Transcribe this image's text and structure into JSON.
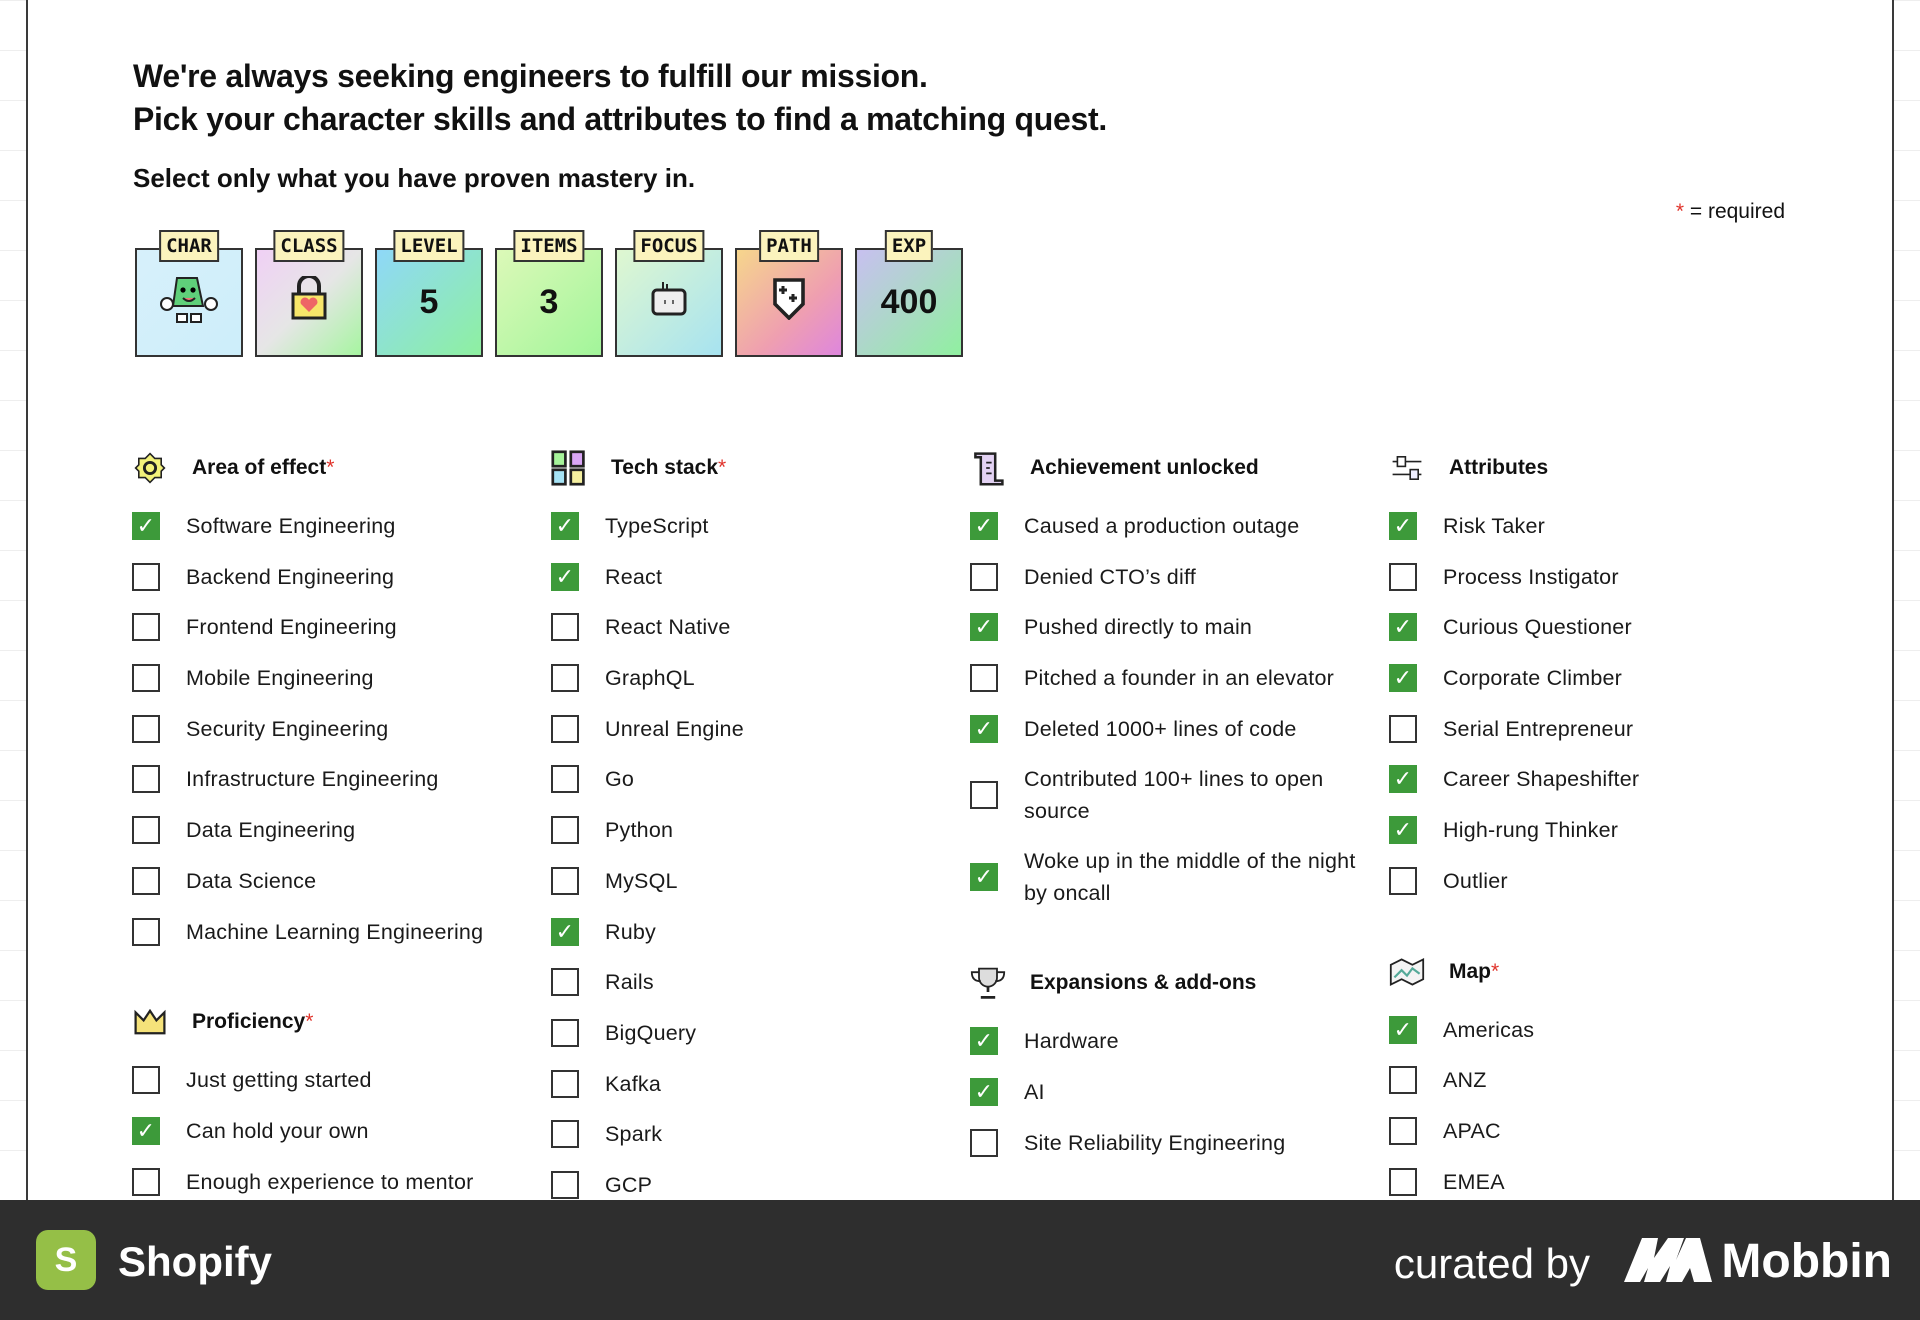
{
  "headline": {
    "line1": "We're always seeking engineers to fulfill our mission.",
    "line2": "Pick your character skills and attributes to find a matching quest."
  },
  "subheading": "Select only what you have proven mastery in.",
  "required_note": {
    "star": "*",
    "text": " = required"
  },
  "cards": [
    {
      "label": "CHAR",
      "icon": "character-icon",
      "value": "",
      "bg": "linear-gradient(135deg,#d7f0fb,#cdeefa)"
    },
    {
      "label": "CLASS",
      "icon": "padlock-heart-icon",
      "value": "",
      "bg": "linear-gradient(135deg,#f0d0f5,#e6e6e6 50%,#a6f5a0)"
    },
    {
      "label": "LEVEL",
      "icon": "",
      "value": "5",
      "bg": "linear-gradient(135deg,#8fd8f8,#8ef0a0)"
    },
    {
      "label": "ITEMS",
      "icon": "",
      "value": "3",
      "bg": "linear-gradient(135deg,#dcf9b8,#a2f59a)"
    },
    {
      "label": "FOCUS",
      "icon": "robot-face-icon",
      "value": "",
      "bg": "linear-gradient(135deg,#dff7d0,#a7e3f0)"
    },
    {
      "label": "PATH",
      "icon": "shield-plus-icon",
      "value": "",
      "bg": "linear-gradient(135deg,#f6d68c,#ef9fb0 60%,#de86dd)"
    },
    {
      "label": "EXP",
      "icon": "",
      "value": "400",
      "bg": "linear-gradient(135deg,#c8c0f0,#90f0a0)"
    }
  ],
  "columns": [
    [
      {
        "title": "Area of effect",
        "required": "*",
        "icon": "gear-icon",
        "items": [
          {
            "label": "Software Engineering",
            "checked": true
          },
          {
            "label": "Backend Engineering",
            "checked": false
          },
          {
            "label": "Frontend Engineering",
            "checked": false
          },
          {
            "label": "Mobile Engineering",
            "checked": false
          },
          {
            "label": "Security Engineering",
            "checked": false
          },
          {
            "label": "Infrastructure Engineering",
            "checked": false
          },
          {
            "label": "Data Engineering",
            "checked": false
          },
          {
            "label": "Data Science",
            "checked": false
          },
          {
            "label": "Machine Learning Engineering",
            "checked": false
          }
        ]
      },
      {
        "title": "Proficiency",
        "required": "*",
        "icon": "crown-icon",
        "items": [
          {
            "label": "Just getting started",
            "checked": false
          },
          {
            "label": "Can hold your own",
            "checked": true
          },
          {
            "label": "Enough experience to mentor",
            "checked": false
          }
        ]
      }
    ],
    [
      {
        "title": "Tech stack",
        "required": "*",
        "icon": "grid-blocks-icon",
        "items": [
          {
            "label": "TypeScript",
            "checked": true
          },
          {
            "label": "React",
            "checked": true
          },
          {
            "label": "React Native",
            "checked": false
          },
          {
            "label": "GraphQL",
            "checked": false
          },
          {
            "label": "Unreal Engine",
            "checked": false
          },
          {
            "label": "Go",
            "checked": false
          },
          {
            "label": "Python",
            "checked": false
          },
          {
            "label": "MySQL",
            "checked": false
          },
          {
            "label": "Ruby",
            "checked": true
          },
          {
            "label": "Rails",
            "checked": false
          },
          {
            "label": "BigQuery",
            "checked": false
          },
          {
            "label": "Kafka",
            "checked": false
          },
          {
            "label": "Spark",
            "checked": false
          },
          {
            "label": "GCP",
            "checked": false
          }
        ]
      }
    ],
    [
      {
        "title": "Achievement unlocked",
        "required": "",
        "icon": "scroll-icon",
        "items": [
          {
            "label": "Caused a production outage",
            "checked": true
          },
          {
            "label": "Denied CTO’s diff",
            "checked": false
          },
          {
            "label": "Pushed directly to main",
            "checked": true
          },
          {
            "label": "Pitched a founder in an elevator",
            "checked": false
          },
          {
            "label": "Deleted 1000+ lines of code",
            "checked": true
          },
          {
            "label": "Contributed 100+ lines to open source",
            "checked": false
          },
          {
            "label": "Woke up in the middle of the night by oncall",
            "checked": true
          }
        ]
      },
      {
        "title": "Expansions & add-ons",
        "required": "",
        "icon": "trophy-icon",
        "items": [
          {
            "label": "Hardware",
            "checked": true
          },
          {
            "label": "AI",
            "checked": true
          },
          {
            "label": "Site Reliability Engineering",
            "checked": false
          }
        ]
      }
    ],
    [
      {
        "title": "Attributes",
        "required": "",
        "icon": "sliders-icon",
        "items": [
          {
            "label": "Risk Taker",
            "checked": true
          },
          {
            "label": "Process Instigator",
            "checked": false
          },
          {
            "label": "Curious Questioner",
            "checked": true
          },
          {
            "label": "Corporate Climber",
            "checked": true
          },
          {
            "label": "Serial Entrepreneur",
            "checked": false
          },
          {
            "label": "Career Shapeshifter",
            "checked": true
          },
          {
            "label": "High-rung Thinker",
            "checked": true
          },
          {
            "label": "Outlier",
            "checked": false
          }
        ]
      },
      {
        "title": "Map",
        "required": "*",
        "icon": "map-icon",
        "items": [
          {
            "label": "Americas",
            "checked": true
          },
          {
            "label": "ANZ",
            "checked": false
          },
          {
            "label": "APAC",
            "checked": false
          },
          {
            "label": "EMEA",
            "checked": false
          }
        ]
      }
    ]
  ],
  "footer": {
    "app_name": "Shopify",
    "curated_by": "curated by",
    "brand": "Mobbin"
  },
  "colors": {
    "check": "#3d9a3a",
    "required": "#e0332b",
    "footer_bg": "#2e2e2e"
  }
}
